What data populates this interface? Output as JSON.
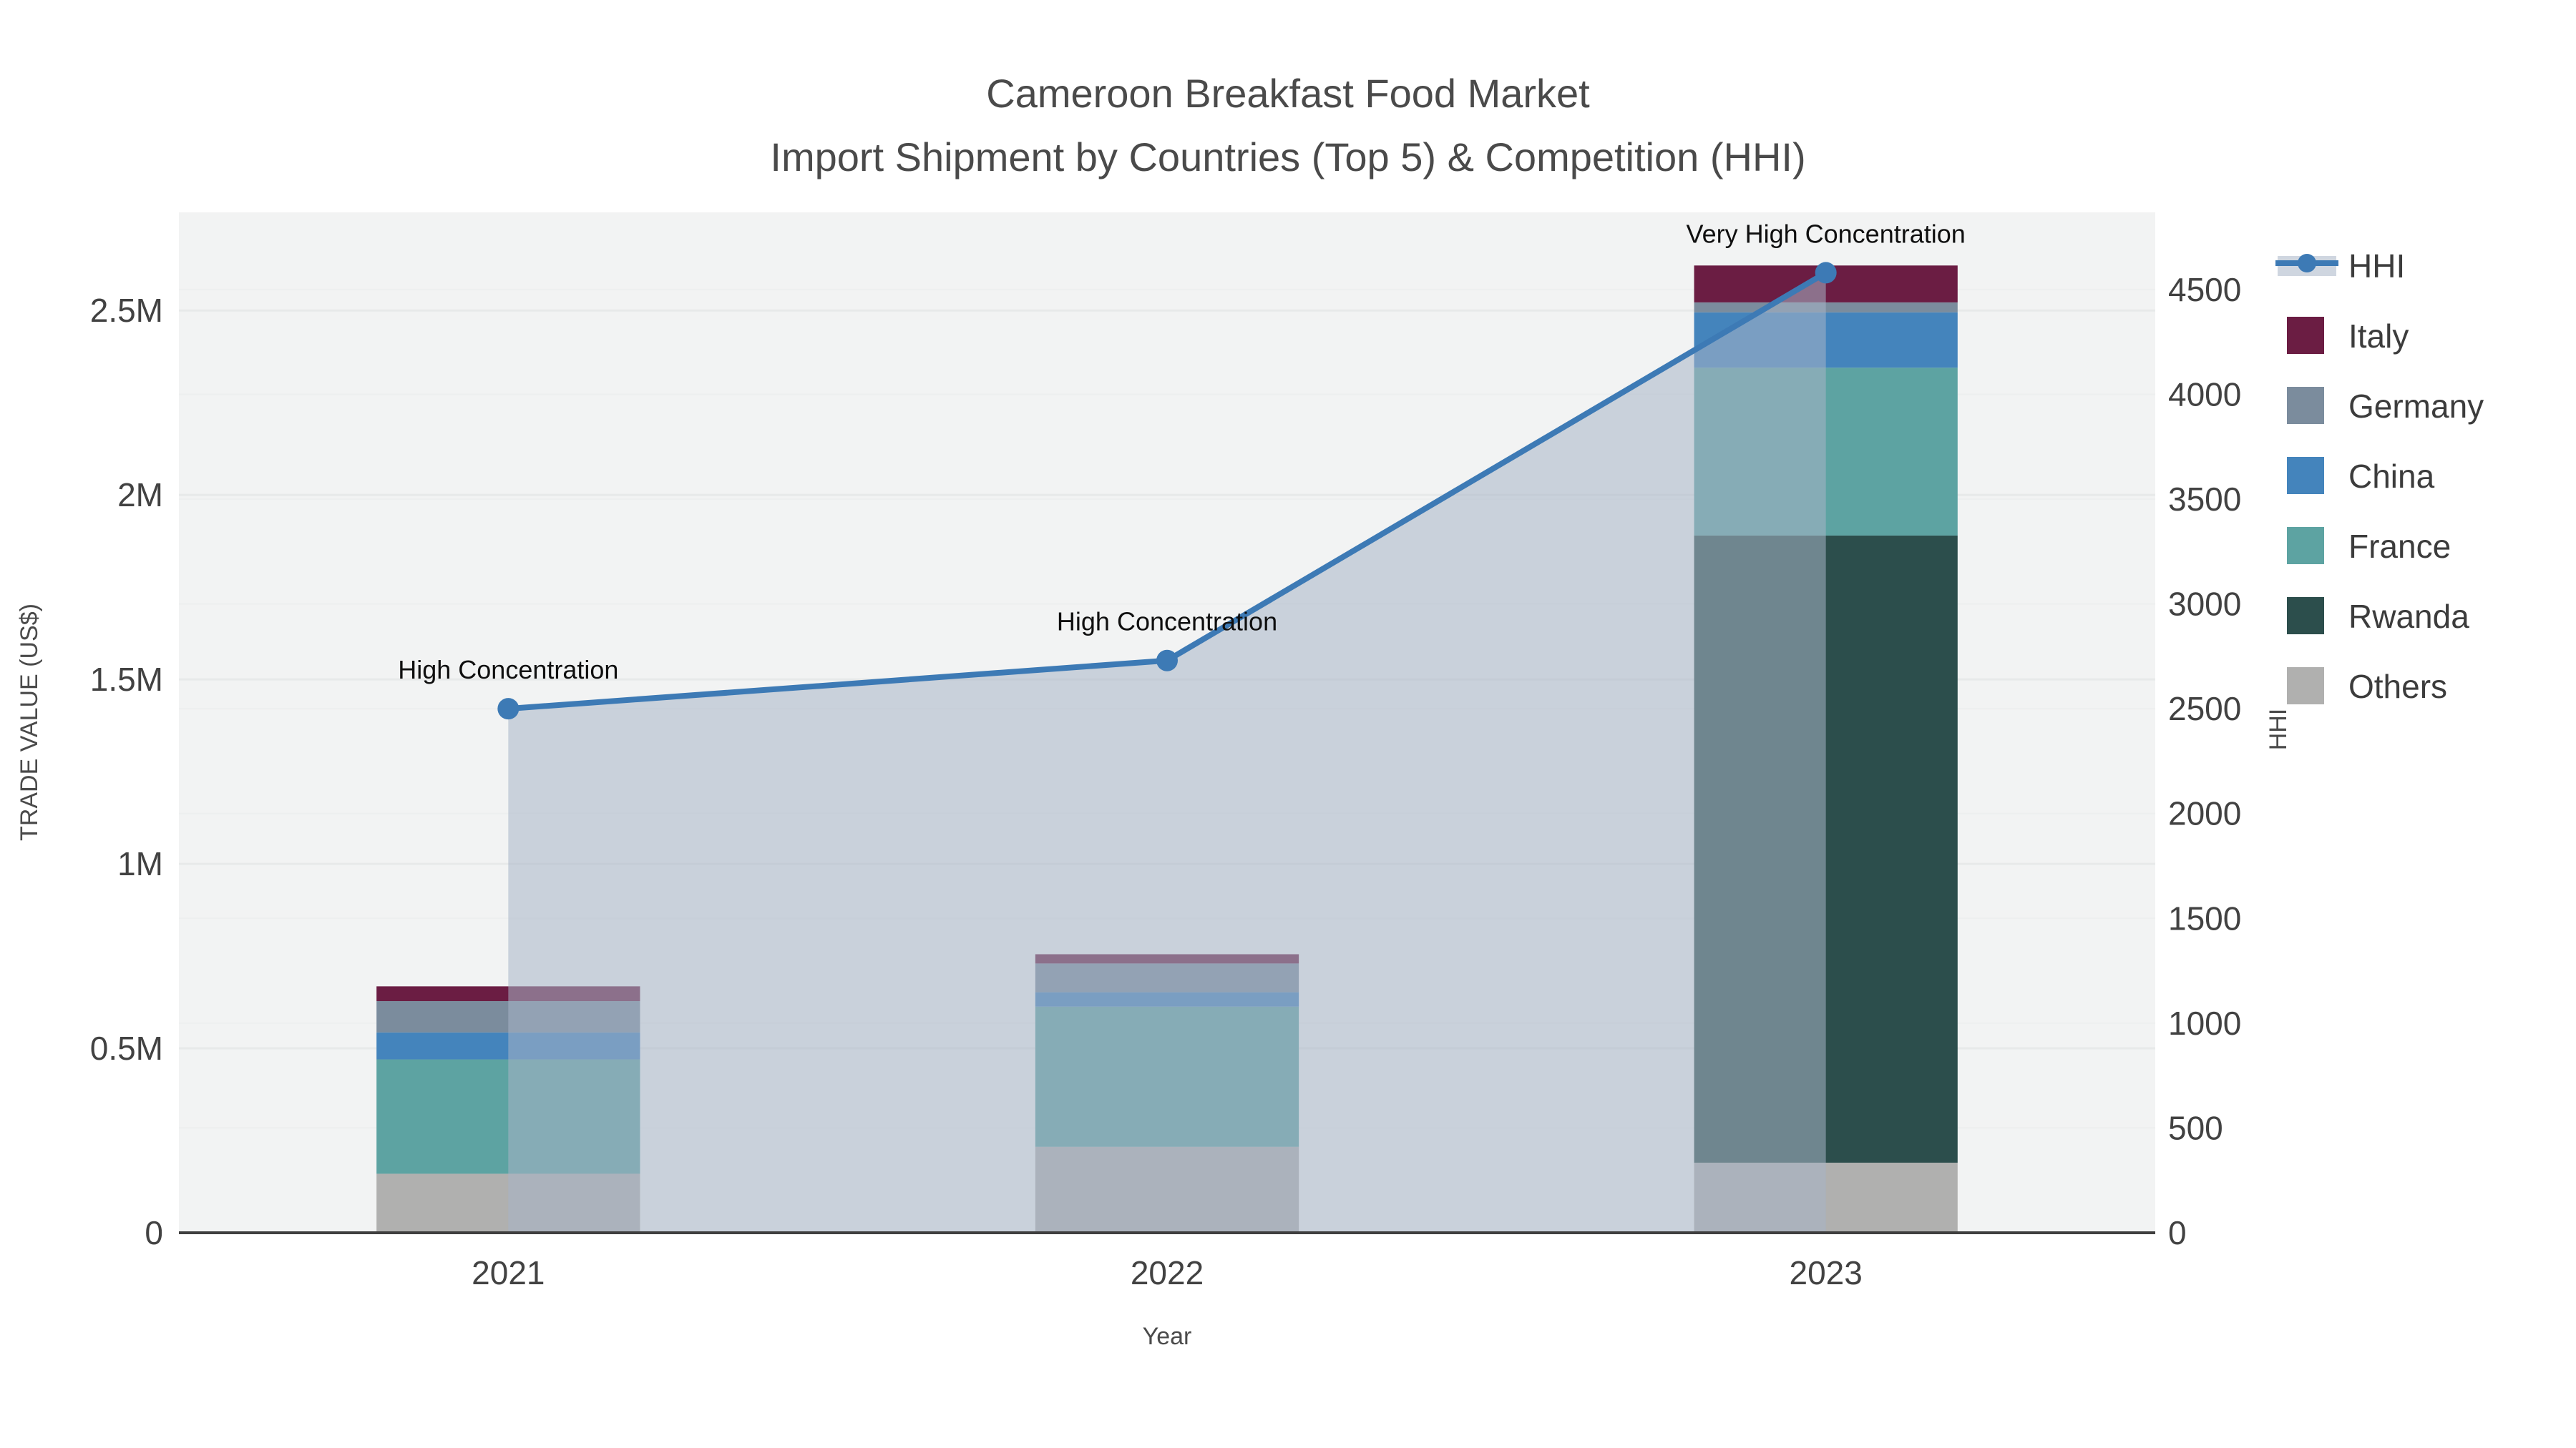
{
  "title": {
    "line1": "Cameroon Breakfast Food Market",
    "line2": "Import Shipment by Countries (Top 5) & Competition (HHI)"
  },
  "chart_data": {
    "type": "bar",
    "subtype": "stacked-bars-with-line-overlay-dual-axis",
    "title": "Cameroon Breakfast Food Market — Import Shipment by Countries (Top 5) & Competition (HHI)",
    "xlabel": "Year",
    "ylabel": "TRADE VALUE (US$)",
    "y2label": "HHI",
    "categories": [
      "2021",
      "2022",
      "2023"
    ],
    "bar_series": [
      {
        "name": "Others",
        "color": "#b0b0af",
        "values": [
          160000,
          233000,
          190000
        ]
      },
      {
        "name": "Rwanda",
        "color": "#2c4e4c",
        "values": [
          0,
          0,
          1700000
        ]
      },
      {
        "name": "France",
        "color": "#5da3a2",
        "values": [
          310000,
          380000,
          455000
        ]
      },
      {
        "name": "China",
        "color": "#4484bc",
        "values": [
          73000,
          39000,
          150000
        ]
      },
      {
        "name": "Germany",
        "color": "#7b8c9d",
        "values": [
          85000,
          78000,
          27000
        ]
      },
      {
        "name": "Italy",
        "color": "#6b1d43",
        "values": [
          40000,
          25000,
          100000
        ]
      }
    ],
    "bar_totals": [
      668000,
      755000,
      2622000
    ],
    "line_series": {
      "name": "HHI",
      "color": "#3d7ab5",
      "fill_color": "rgba(167,180,198,0.55)",
      "values": [
        2500,
        2730,
        4580
      ]
    },
    "annotations": [
      "High Concentration",
      "High Concentration",
      "Very High Concentration"
    ],
    "y_axis": {
      "range": [
        0,
        2766000
      ],
      "ticks": [
        0,
        500000,
        1000000,
        1500000,
        2000000,
        2500000
      ],
      "tick_labels": [
        "0",
        "0.5M",
        "1M",
        "1.5M",
        "2M",
        "2.5M"
      ]
    },
    "y2_axis": {
      "range": [
        0,
        4868
      ],
      "ticks": [
        0,
        500,
        1000,
        1500,
        2000,
        2500,
        3000,
        3500,
        4000,
        4500
      ],
      "tick_labels": [
        "0",
        "500",
        "1000",
        "1500",
        "2000",
        "2500",
        "3000",
        "3500",
        "4000",
        "4500"
      ]
    },
    "legend_order": [
      "HHI",
      "Italy",
      "Germany",
      "China",
      "France",
      "Rwanda",
      "Others"
    ],
    "grid": "on",
    "legend_position": "right"
  },
  "colors": {
    "plot_bg": "#f2f3f3",
    "grid_major": "#e7e9e9",
    "grid_minor": "#edefef",
    "axis_line": "#3f3f3f",
    "legend_band": "#cfd6e0"
  }
}
